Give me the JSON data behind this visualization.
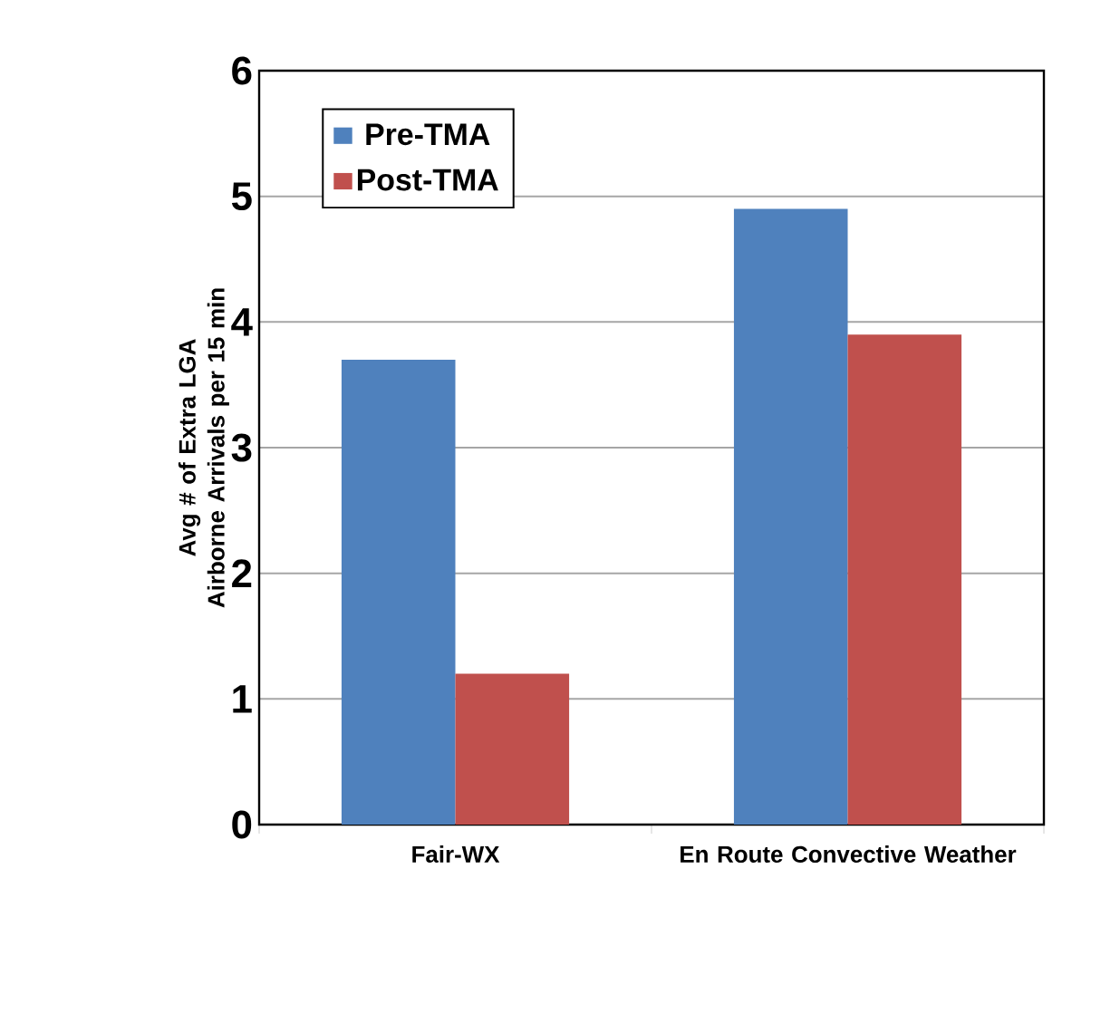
{
  "chart_data": {
    "type": "bar",
    "ylabel": "Avg # of Extra LGA Airborne Arrivals per 15 min",
    "categories": [
      "Fair-WX",
      "En Route Convective Weather"
    ],
    "series": [
      {
        "name": "Pre-TMA",
        "color": "#4f81bd",
        "values": [
          3.7,
          4.9
        ]
      },
      {
        "name": "Post-TMA",
        "color": "#c0504d",
        "values": [
          1.2,
          3.9
        ]
      }
    ],
    "ylim": [
      0,
      6
    ],
    "yticks": [
      0,
      1,
      2,
      3,
      4,
      5,
      6
    ],
    "grid": "y",
    "legend": "top left"
  }
}
